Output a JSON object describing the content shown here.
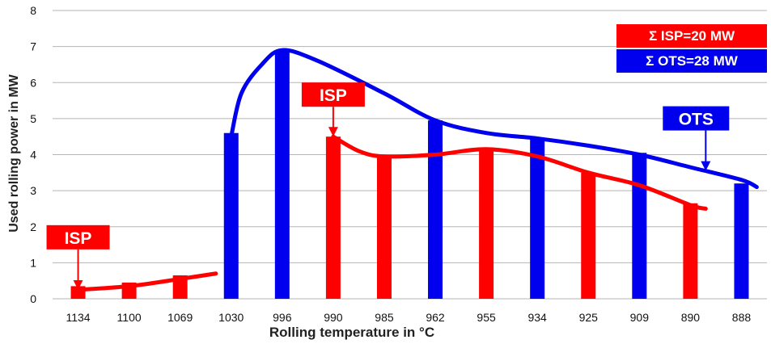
{
  "chart_data": {
    "type": "bar",
    "xlabel": "Rolling temperature in °C",
    "ylabel": "Used rolling power in MW",
    "ylim": [
      0,
      8
    ],
    "yticks": [
      "0",
      "1",
      "2",
      "3",
      "4",
      "5",
      "6",
      "7",
      "8"
    ],
    "grid": true,
    "categories": [
      "1134",
      "1100",
      "1069",
      "1030",
      "996",
      "990",
      "985",
      "962",
      "955",
      "934",
      "925",
      "909",
      "890",
      "888"
    ],
    "series": [
      {
        "name": "ISP",
        "color": "#ff0000",
        "values": [
          0.35,
          0.45,
          0.65,
          null,
          null,
          4.5,
          3.95,
          null,
          4.1,
          null,
          3.5,
          null,
          2.65,
          null
        ]
      },
      {
        "name": "OTS",
        "color": "#0000ee",
        "values": [
          null,
          null,
          null,
          4.6,
          6.85,
          null,
          null,
          4.95,
          null,
          4.45,
          null,
          4.05,
          null,
          3.2
        ]
      }
    ],
    "trend_lines": [
      {
        "series": "ISP",
        "points": [
          [
            0,
            0.25
          ],
          [
            1,
            0.35
          ],
          [
            2,
            0.55
          ],
          [
            2.7,
            0.7
          ]
        ]
      },
      {
        "series": "ISP",
        "points": [
          [
            5,
            4.5
          ],
          [
            5.5,
            4.1
          ],
          [
            6,
            3.95
          ],
          [
            7,
            4.0
          ],
          [
            8,
            4.15
          ],
          [
            9,
            3.95
          ],
          [
            10,
            3.5
          ],
          [
            11,
            3.15
          ],
          [
            12,
            2.6
          ],
          [
            12.3,
            2.5
          ]
        ]
      },
      {
        "series": "OTS",
        "points": [
          [
            3,
            4.5
          ],
          [
            3.2,
            5.7
          ],
          [
            3.6,
            6.5
          ],
          [
            4,
            6.9
          ],
          [
            4.7,
            6.6
          ],
          [
            6,
            5.7
          ],
          [
            7,
            4.95
          ],
          [
            8,
            4.6
          ],
          [
            9,
            4.45
          ],
          [
            10,
            4.25
          ],
          [
            11,
            4.0
          ],
          [
            12,
            3.65
          ],
          [
            13,
            3.3
          ],
          [
            13.3,
            3.1
          ]
        ]
      }
    ],
    "legend": {
      "placement": "top-right",
      "items": [
        {
          "label": "Σ ISP=20 MW",
          "color": "#ff0000"
        },
        {
          "label": "Σ OTS=28 MW",
          "color": "#0000ee"
        }
      ]
    },
    "annotations": [
      {
        "text": "ISP",
        "color": "#ff0000",
        "target": [
          0,
          0.25
        ]
      },
      {
        "text": "ISP",
        "color": "#ff0000",
        "target": [
          5,
          4.5
        ]
      },
      {
        "text": "OTS",
        "color": "#0000ee",
        "target": [
          12.3,
          3.55
        ]
      }
    ]
  }
}
